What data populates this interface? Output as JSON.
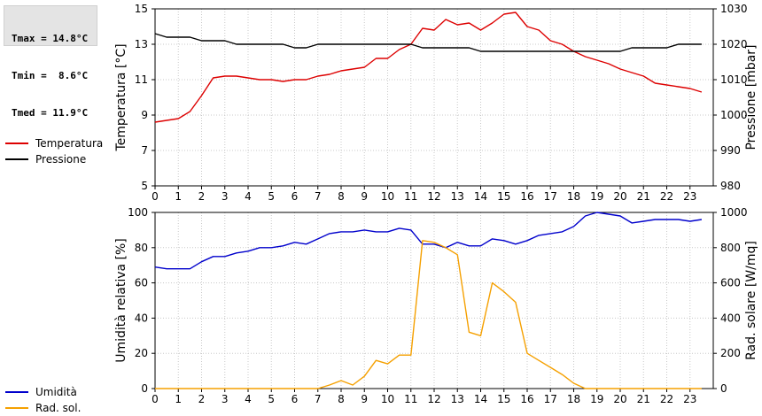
{
  "stats": {
    "tmax": "Tmax = 14.8°C",
    "tmin": "Tmin =  8.6°C",
    "tmed": "Tmed = 11.9°C"
  },
  "legend_top": [
    {
      "label": "Temperatura",
      "color": "#dd0000"
    },
    {
      "label": "Pressione",
      "color": "#000000"
    }
  ],
  "legend_bottom": [
    {
      "label": "Umidità",
      "color": "#0000cc"
    },
    {
      "label": "Rad. sol.",
      "color": "#f5a000"
    }
  ],
  "chart_data": [
    {
      "type": "line",
      "x_ticks": [
        0,
        1,
        2,
        3,
        4,
        5,
        6,
        7,
        8,
        9,
        10,
        11,
        12,
        13,
        14,
        15,
        16,
        17,
        18,
        19,
        20,
        21,
        22,
        23
      ],
      "xlim": [
        0,
        24
      ],
      "left_axis": {
        "label": "Temperatura [°C]",
        "ylim": [
          5,
          15
        ],
        "ticks": [
          5,
          7,
          9,
          11,
          13,
          15
        ]
      },
      "right_axis": {
        "label": "Pressione [mbar]",
        "ylim": [
          980,
          1030
        ],
        "ticks": [
          980,
          990,
          1000,
          1010,
          1020,
          1030
        ]
      },
      "series": [
        {
          "name": "Temperatura",
          "axis": "left",
          "color": "#dd0000",
          "x": [
            0,
            0.5,
            1,
            1.5,
            2,
            2.5,
            3,
            3.5,
            4,
            4.5,
            5,
            5.5,
            6,
            6.5,
            7,
            7.5,
            8,
            8.5,
            9,
            9.5,
            10,
            10.5,
            11,
            11.5,
            12,
            12.5,
            13,
            13.5,
            14,
            14.5,
            15,
            15.5,
            16,
            16.5,
            17,
            17.5,
            18,
            18.5,
            19,
            19.5,
            20,
            20.5,
            21,
            21.5,
            22,
            22.5,
            23,
            23.5
          ],
          "y": [
            8.6,
            8.7,
            8.8,
            9.2,
            10.1,
            11.1,
            11.2,
            11.2,
            11.1,
            11.0,
            11.0,
            10.9,
            11.0,
            11.0,
            11.2,
            11.3,
            11.5,
            11.6,
            11.7,
            12.2,
            12.2,
            12.7,
            13.0,
            13.9,
            13.8,
            14.4,
            14.1,
            14.2,
            13.8,
            14.2,
            14.7,
            14.8,
            14.0,
            13.8,
            13.2,
            13.0,
            12.6,
            12.3,
            12.1,
            11.9,
            11.6,
            11.4,
            11.2,
            10.8,
            10.7,
            10.6,
            10.5,
            10.3
          ]
        },
        {
          "name": "Pressione",
          "axis": "right",
          "color": "#000000",
          "x": [
            0,
            0.5,
            1,
            1.5,
            2,
            2.5,
            3,
            3.5,
            4,
            4.5,
            5,
            5.5,
            6,
            6.5,
            7,
            7.5,
            8,
            8.5,
            9,
            9.5,
            10,
            10.5,
            11,
            11.5,
            12,
            12.5,
            13,
            13.5,
            14,
            14.5,
            15,
            15.5,
            16,
            16.5,
            17,
            17.5,
            18,
            18.5,
            19,
            19.5,
            20,
            20.5,
            21,
            21.5,
            22,
            22.5,
            23,
            23.5
          ],
          "y": [
            1023,
            1022,
            1022,
            1022,
            1021,
            1021,
            1021,
            1020,
            1020,
            1020,
            1020,
            1020,
            1019,
            1019,
            1020,
            1020,
            1020,
            1020,
            1020,
            1020,
            1020,
            1020,
            1020,
            1019,
            1019,
            1019,
            1019,
            1019,
            1018,
            1018,
            1018,
            1018,
            1018,
            1018,
            1018,
            1018,
            1018,
            1018,
            1018,
            1018,
            1018,
            1019,
            1019,
            1019,
            1019,
            1020,
            1020,
            1020
          ]
        }
      ]
    },
    {
      "type": "line",
      "x_ticks": [
        0,
        1,
        2,
        3,
        4,
        5,
        6,
        7,
        8,
        9,
        10,
        11,
        12,
        13,
        14,
        15,
        16,
        17,
        18,
        19,
        20,
        21,
        22,
        23
      ],
      "xlim": [
        0,
        24
      ],
      "left_axis": {
        "label": "Umidità relativa [%]",
        "ylim": [
          0,
          100
        ],
        "ticks": [
          0,
          20,
          40,
          60,
          80,
          100
        ]
      },
      "right_axis": {
        "label": "Rad. solare [W/mq]",
        "ylim": [
          0,
          1000
        ],
        "ticks": [
          0,
          200,
          400,
          600,
          800,
          1000
        ]
      },
      "series": [
        {
          "name": "Umidità",
          "axis": "left",
          "color": "#0000cc",
          "x": [
            0,
            0.5,
            1,
            1.5,
            2,
            2.5,
            3,
            3.5,
            4,
            4.5,
            5,
            5.5,
            6,
            6.5,
            7,
            7.5,
            8,
            8.5,
            9,
            9.5,
            10,
            10.5,
            11,
            11.5,
            12,
            12.5,
            13,
            13.5,
            14,
            14.5,
            15,
            15.5,
            16,
            16.5,
            17,
            17.5,
            18,
            18.5,
            19,
            19.5,
            20,
            20.5,
            21,
            21.5,
            22,
            22.5,
            23,
            23.5
          ],
          "y": [
            69,
            68,
            68,
            68,
            72,
            75,
            75,
            77,
            78,
            80,
            80,
            81,
            83,
            82,
            85,
            88,
            89,
            89,
            90,
            89,
            89,
            91,
            90,
            82,
            82,
            80,
            83,
            81,
            81,
            85,
            84,
            82,
            84,
            87,
            88,
            89,
            92,
            98,
            100,
            99,
            98,
            94,
            95,
            96,
            96,
            96,
            95,
            96
          ]
        },
        {
          "name": "Rad. sol.",
          "axis": "right",
          "color": "#f5a000",
          "x": [
            0,
            0.5,
            1,
            1.5,
            2,
            2.5,
            3,
            3.5,
            4,
            4.5,
            5,
            5.5,
            6,
            6.5,
            7,
            7.5,
            8,
            8.5,
            9,
            9.5,
            10,
            10.5,
            11,
            11.5,
            12,
            12.5,
            13,
            13.5,
            14,
            14.5,
            15,
            15.5,
            16,
            16.5,
            17,
            17.5,
            18,
            18.5,
            19,
            19.5,
            20,
            20.5,
            21,
            21.5,
            22,
            22.5,
            23,
            23.5
          ],
          "y": [
            0,
            0,
            0,
            0,
            0,
            0,
            0,
            0,
            0,
            0,
            0,
            0,
            0,
            0,
            0,
            20,
            45,
            20,
            70,
            160,
            140,
            190,
            190,
            840,
            830,
            800,
            760,
            320,
            300,
            600,
            550,
            490,
            200,
            160,
            120,
            80,
            30,
            0,
            0,
            0,
            0,
            0,
            0,
            0,
            0,
            0,
            0,
            0
          ]
        }
      ]
    }
  ]
}
